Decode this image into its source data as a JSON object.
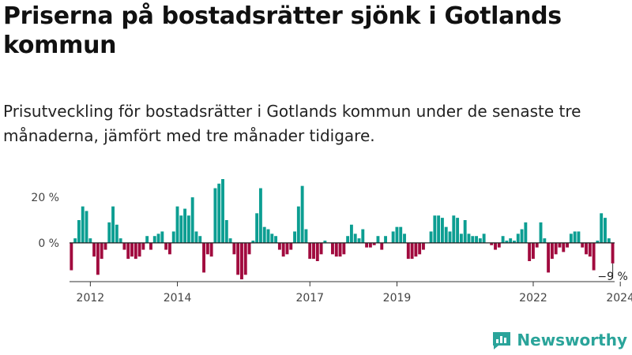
{
  "header": {
    "title": "Priserna på bostadsrätter sjönk i Gotlands kommun",
    "subtitle": "Prisutveckling för bostadsrätter i Gotlands kommun under de senaste tre månaderna, jämfört med tre månader tidigare."
  },
  "brand": {
    "name": "Newsworthy",
    "icon": "newsworthy-logo-icon"
  },
  "colors": {
    "positive": "#0c9e92",
    "negative": "#a10a3e",
    "axis": "#333333",
    "zero_line": "#222222"
  },
  "chart_data": {
    "type": "bar",
    "title": "",
    "xlabel": "",
    "ylabel": "",
    "unit": "%",
    "ylim": [
      -17,
      28
    ],
    "grid": false,
    "y_ticks": [
      {
        "value": 20,
        "label": "20 %"
      },
      {
        "value": 0,
        "label": "0 %"
      }
    ],
    "x_ticks": [
      {
        "index": 5,
        "label": "2012"
      },
      {
        "index": 28,
        "label": "2014"
      },
      {
        "index": 63,
        "label": "2017"
      },
      {
        "index": 86,
        "label": "2019"
      },
      {
        "index": 122,
        "label": "2022"
      },
      {
        "index": 145,
        "label": "2024"
      }
    ],
    "last_value_label": "−9 %",
    "values": [
      -12,
      2,
      10,
      16,
      14,
      2,
      -6,
      -14,
      -7,
      -3,
      9,
      16,
      8,
      2,
      -3,
      -7,
      -6,
      -7,
      -6,
      -3,
      3,
      -3,
      3,
      4,
      5,
      -3,
      -5,
      5,
      16,
      12,
      15,
      12,
      20,
      5,
      3,
      -13,
      -5,
      -6,
      24,
      26,
      28,
      10,
      2,
      -5,
      -14,
      -16,
      -14,
      -5,
      1,
      13,
      24,
      7,
      6,
      4,
      3,
      -3,
      -6,
      -5,
      -3,
      5,
      16,
      25,
      6,
      -7,
      -7,
      -8,
      -5,
      1,
      0,
      -5,
      -6,
      -6,
      -5,
      3,
      8,
      4,
      2,
      6,
      -2,
      -2,
      -1,
      3,
      -3,
      3,
      0,
      5,
      7,
      7,
      4,
      -7,
      -7,
      -6,
      -5,
      -3,
      0,
      5,
      12,
      12,
      11,
      7,
      5,
      12,
      11,
      4,
      10,
      4,
      3,
      3,
      2,
      4,
      0,
      -1,
      -3,
      -2,
      3,
      1,
      2,
      1,
      4,
      6,
      9,
      -8,
      -7,
      -2,
      9,
      2,
      -13,
      -7,
      -5,
      -2,
      -4,
      -2,
      4,
      5,
      5,
      -2,
      -5,
      -6,
      -12,
      1,
      13,
      11,
      2,
      -9
    ]
  }
}
